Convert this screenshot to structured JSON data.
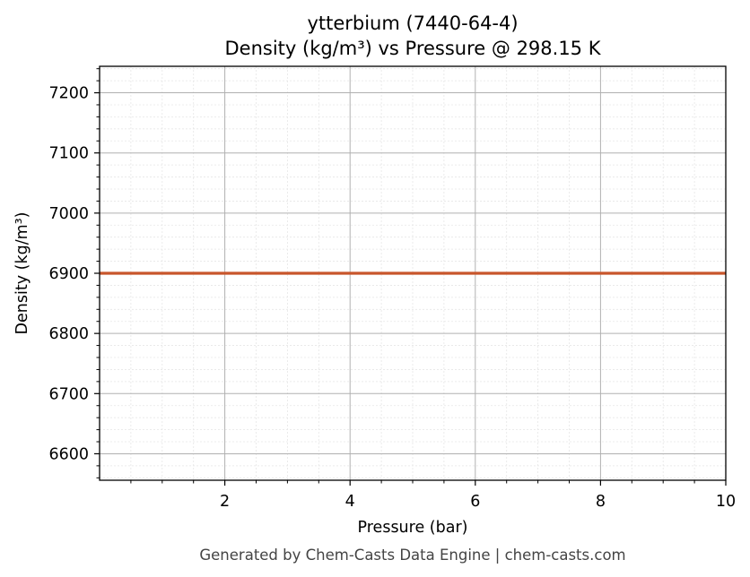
{
  "chart_data": {
    "type": "line",
    "title": "ytterbium (7440-64-4)",
    "subtitle": "Density (kg/m³) vs Pressure @ 298.15 K",
    "xlabel": "Pressure (bar)",
    "ylabel": "Density (kg/m³)",
    "xlim": [
      0,
      10
    ],
    "ylim": [
      6556,
      7244
    ],
    "x_ticks": [
      2,
      4,
      6,
      8,
      10
    ],
    "x_tick_labels": [
      "2",
      "4",
      "6",
      "8",
      "10"
    ],
    "y_ticks": [
      6600,
      6700,
      6800,
      6900,
      7000,
      7100,
      7200
    ],
    "y_tick_labels": [
      "6600",
      "6700",
      "6800",
      "6900",
      "7000",
      "7100",
      "7200"
    ],
    "grid": "major and minor",
    "series": [
      {
        "x": [
          0,
          1,
          2,
          3,
          4,
          5,
          6,
          7,
          8,
          9,
          10
        ],
        "y": [
          6900,
          6900,
          6900,
          6900,
          6900,
          6900,
          6900,
          6900,
          6900,
          6900,
          6900
        ],
        "color": "#c8552b"
      }
    ]
  },
  "footer": "Generated by Chem-Casts Data Engine | chem-casts.com",
  "colors": {
    "line": "#c8552b",
    "major_grid": "#b0b0b0",
    "minor_grid": "#e6e6e6",
    "footer": "#444444"
  }
}
